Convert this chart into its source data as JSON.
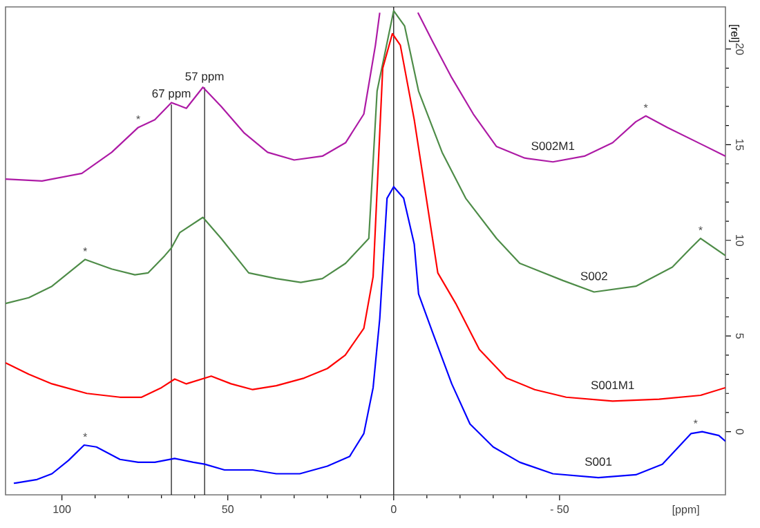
{
  "chart_data": {
    "type": "line",
    "xlabel": "[ppm]",
    "ylabel": "[rel]",
    "xlim": [
      117,
      -100
    ],
    "ylim": [
      -3.3,
      22.2
    ],
    "xticks": [
      100,
      50,
      0,
      {
        "value": -50,
        "label": "- 50"
      }
    ],
    "yticks": [
      0,
      5,
      10,
      15,
      20
    ],
    "series": [
      {
        "name": "S002M1",
        "color": "#ad1aa5",
        "x": [
          117,
          106,
          94,
          85,
          77,
          72,
          67,
          62.5,
          57.5,
          52,
          45,
          38,
          30,
          21.5,
          14.5,
          9,
          5.5,
          4.2,
          0,
          -7.3,
          -11.7,
          -17.5,
          -24,
          -31,
          -39.5,
          -48,
          -57.5,
          -66,
          -73,
          -76,
          -82.5,
          -100
        ],
        "values": [
          13.2,
          13.1,
          13.5,
          14.6,
          15.9,
          16.3,
          17.2,
          16.9,
          18.0,
          17.0,
          15.6,
          14.6,
          14.2,
          14.4,
          15.1,
          16.6,
          20.2,
          21.9,
          null,
          21.9,
          20.4,
          18.5,
          16.6,
          14.9,
          14.3,
          14.1,
          14.4,
          15.1,
          16.2,
          16.5,
          15.9,
          14.4
        ]
      },
      {
        "name": "S002",
        "color": "#4e8c48",
        "x": [
          117,
          110,
          103,
          93,
          85,
          78,
          74,
          69,
          67,
          64.5,
          57.5,
          52,
          43.7,
          35.4,
          28,
          21.5,
          14.5,
          7.5,
          5,
          0,
          -3.3,
          -7.5,
          -14.6,
          -21.7,
          -31,
          -38,
          -51,
          -60.4,
          -73,
          -84,
          -89.6,
          -92.5,
          -100
        ],
        "values": [
          6.7,
          7.0,
          7.6,
          9.0,
          8.5,
          8.2,
          8.3,
          9.2,
          9.6,
          10.4,
          11.2,
          10.1,
          8.3,
          8.0,
          7.8,
          8.0,
          8.8,
          10.1,
          17.8,
          22.0,
          21.2,
          17.8,
          14.6,
          12.2,
          10.1,
          8.8,
          7.9,
          7.3,
          7.6,
          8.6,
          9.6,
          10.1,
          9.2
        ]
      },
      {
        "name": "S001M1",
        "color": "#ff0000",
        "x": [
          117,
          110,
          103,
          92.5,
          82.5,
          76,
          70,
          66,
          62.5,
          55,
          49,
          42.5,
          35.4,
          27,
          20,
          14.6,
          9,
          6.2,
          3.3,
          0.4,
          -2,
          -6.2,
          -13.3,
          -18.7,
          -25.8,
          -34,
          -42.5,
          -52,
          -66,
          -80,
          -92.5,
          -100
        ],
        "values": [
          3.6,
          3.0,
          2.5,
          2.0,
          1.8,
          1.8,
          2.3,
          2.75,
          2.5,
          2.9,
          2.5,
          2.2,
          2.4,
          2.8,
          3.3,
          4.0,
          5.4,
          8.1,
          19.0,
          20.8,
          20.2,
          16.3,
          8.3,
          6.7,
          4.3,
          2.8,
          2.2,
          1.8,
          1.6,
          1.7,
          1.9,
          2.3
        ]
      },
      {
        "name": "S001",
        "color": "#0000ff",
        "x": [
          114.5,
          107.5,
          103,
          98,
          93.3,
          89.6,
          82.5,
          77,
          72,
          66,
          60.4,
          57,
          51,
          42.5,
          35.4,
          28.3,
          20,
          13.3,
          9,
          6.2,
          4.2,
          2,
          0,
          -3,
          -6.2,
          -7.5,
          -11.7,
          -17.5,
          -23,
          -30,
          -38,
          -48,
          -61.7,
          -73,
          -81,
          -89.6,
          -93,
          -98,
          -100
        ],
        "values": [
          -2.7,
          -2.5,
          -2.2,
          -1.5,
          -0.7,
          -0.8,
          -1.45,
          -1.6,
          -1.6,
          -1.4,
          -1.6,
          -1.7,
          -2.0,
          -2.0,
          -2.2,
          -2.2,
          -1.8,
          -1.3,
          -0.1,
          2.3,
          5.9,
          12.2,
          12.8,
          12.2,
          9.8,
          7.2,
          5.2,
          2.5,
          0.4,
          -0.8,
          -1.6,
          -2.2,
          -2.4,
          -2.25,
          -1.7,
          -0.1,
          0.0,
          -0.2,
          -0.5
        ]
      }
    ],
    "ref_lines": [
      {
        "axis": "x",
        "value": 67,
        "label": "67 ppm",
        "color": "#000000"
      },
      {
        "axis": "x",
        "value": 57,
        "label": "57 ppm",
        "color": "#000000"
      },
      {
        "axis": "x",
        "value": 0,
        "color": "#000000"
      }
    ],
    "annotations": [
      {
        "text": "*",
        "x": 77,
        "y": 15.9
      },
      {
        "text": "*",
        "x": -76,
        "y": 16.5
      },
      {
        "text": "*",
        "x": 93,
        "y": 9.0
      },
      {
        "text": "*",
        "x": -92.5,
        "y": 10.1
      },
      {
        "text": "*",
        "x": 93,
        "y": -0.7
      },
      {
        "text": "*",
        "x": -91,
        "y": 0.0
      }
    ]
  }
}
